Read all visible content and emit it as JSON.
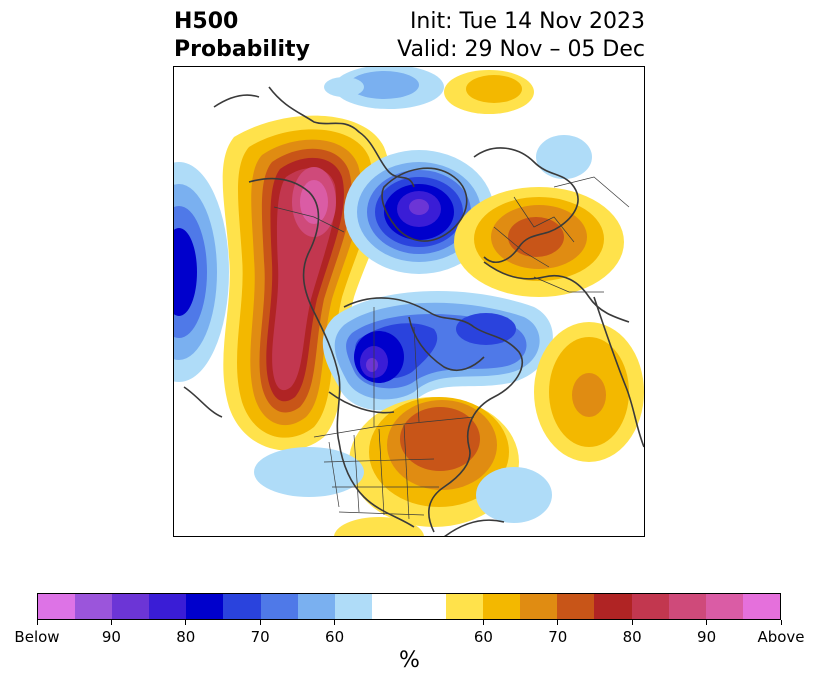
{
  "header": {
    "title_line1": "H500",
    "title_line2": "Probability",
    "init": "Init: Tue 14 Nov 2023",
    "valid": "Valid: 29 Nov – 05 Dec"
  },
  "colorbar": {
    "colors": [
      "#dd73e6",
      "#9b55db",
      "#6c35d6",
      "#3a1dd6",
      "#0000cc",
      "#2a43dd",
      "#4f79e8",
      "#7ab0f0",
      "#afdcf8",
      "#ffffff",
      "#ffffff",
      "#ffe24b",
      "#f3b800",
      "#e08c12",
      "#c85518",
      "#b02424",
      "#c2374f",
      "#cf4a7a",
      "#da5ca5",
      "#e570dc"
    ],
    "tick_labels": [
      "Below",
      "90",
      "80",
      "70",
      "60",
      "60",
      "70",
      "80",
      "90",
      "Above"
    ],
    "unit": "%"
  },
  "map": {
    "legend_mapping": "blue = below-normal 500 hPa height probability; orange/red = above-normal",
    "features": [
      "polar stereographic North America / Arctic view",
      "coastlines",
      "country borders",
      "US state borders"
    ]
  }
}
